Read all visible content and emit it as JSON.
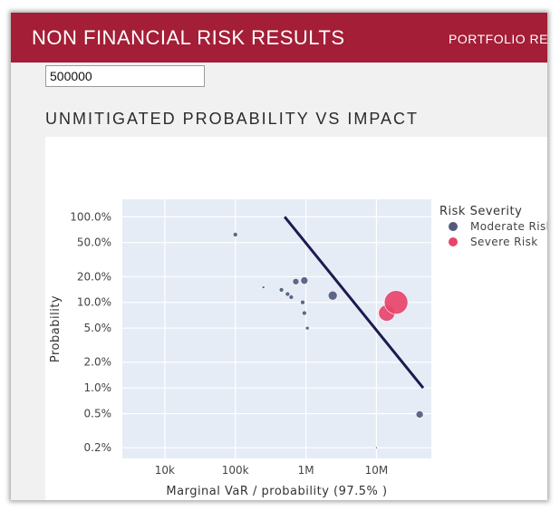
{
  "header": {
    "title": "NON FINANCIAL RISK RESULTS",
    "nav_link": "PORTFOLIO RE"
  },
  "input": {
    "value": "500000"
  },
  "section_title": "UNMITIGATED PROBABILITY VS IMPACT",
  "colors": {
    "header_bg": "#a31e36",
    "plot_bg": "#e5ecf6",
    "moderate": "#545a7c",
    "severe": "#e8446b",
    "line": "#1d1a4f"
  },
  "chart_data": {
    "type": "scatter",
    "x_scale": "log",
    "y_scale": "log",
    "xlabel": "Marginal VaR / probability (97.5% )",
    "ylabel": "Probability",
    "xlim": [
      2500,
      60000000
    ],
    "ylim": [
      0.0015,
      1.6
    ],
    "x_ticks": [
      {
        "value": 10000,
        "label": "10k"
      },
      {
        "value": 100000,
        "label": "100k"
      },
      {
        "value": 1000000,
        "label": "1M"
      },
      {
        "value": 10000000,
        "label": "10M"
      }
    ],
    "y_ticks": [
      {
        "value": 1.0,
        "label": "100.0%"
      },
      {
        "value": 0.5,
        "label": "50.0%"
      },
      {
        "value": 0.2,
        "label": "20.0%"
      },
      {
        "value": 0.1,
        "label": "10.0%"
      },
      {
        "value": 0.05,
        "label": "5.0%"
      },
      {
        "value": 0.02,
        "label": "2.0%"
      },
      {
        "value": 0.01,
        "label": "1.0%"
      },
      {
        "value": 0.005,
        "label": "0.5%"
      },
      {
        "value": 0.002,
        "label": "0.2%"
      }
    ],
    "legend": {
      "title": "Risk Severity",
      "position": "top-right"
    },
    "grid": true,
    "series": [
      {
        "name": "Moderate Risk",
        "color": "#545a7c",
        "points": [
          {
            "x": 100000,
            "y": 0.62,
            "size": 2.5
          },
          {
            "x": 250000,
            "y": 0.15,
            "size": 1.5
          },
          {
            "x": 450000,
            "y": 0.14,
            "size": 2.5
          },
          {
            "x": 550000,
            "y": 0.125,
            "size": 2.5
          },
          {
            "x": 620000,
            "y": 0.115,
            "size": 2.5
          },
          {
            "x": 720000,
            "y": 0.175,
            "size": 3.5
          },
          {
            "x": 950000,
            "y": 0.18,
            "size": 4
          },
          {
            "x": 900000,
            "y": 0.1,
            "size": 2.5
          },
          {
            "x": 950000,
            "y": 0.075,
            "size": 2.5
          },
          {
            "x": 1050000,
            "y": 0.05,
            "size": 2
          },
          {
            "x": 2400000,
            "y": 0.12,
            "size": 5
          },
          {
            "x": 41000000,
            "y": 0.0049,
            "size": 4
          },
          {
            "x": 10000000,
            "y": 0.002,
            "size": 1
          }
        ]
      },
      {
        "name": "Severe Risk",
        "color": "#e8446b",
        "points": [
          {
            "x": 14000000,
            "y": 0.075,
            "size": 9
          },
          {
            "x": 19000000,
            "y": 0.1,
            "size": 13
          }
        ]
      }
    ],
    "trend_line": {
      "points": [
        {
          "x": 500000,
          "y": 1.0
        },
        {
          "x": 46000000,
          "y": 0.01
        }
      ]
    }
  }
}
